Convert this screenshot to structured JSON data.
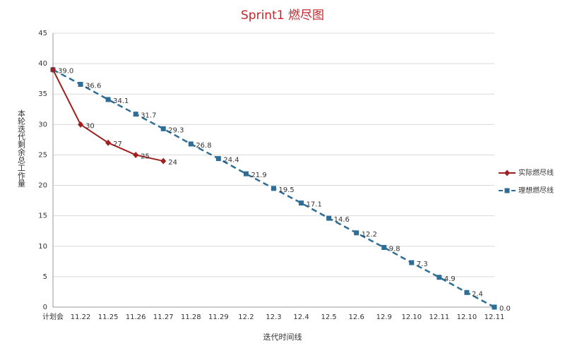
{
  "chart_data": {
    "type": "line",
    "title": "Sprint1 燃尽图",
    "x_label": "迭代时间线",
    "y_label": "本轮迭代剩余总工作量",
    "categories": [
      "计划会",
      "11.22",
      "11.25",
      "11.26",
      "11.27",
      "11.28",
      "11.29",
      "12.2",
      "12.3",
      "12.4",
      "12.5",
      "12.6",
      "12.9",
      "12.10",
      "12.11",
      "12.10",
      "12.11"
    ],
    "series": [
      {
        "name": "实际燃尽线",
        "color": "#a01f1f",
        "marker": "diamond",
        "values": [
          39,
          30,
          27,
          25,
          24,
          null,
          null,
          null,
          null,
          null,
          null,
          null,
          null,
          null,
          null,
          null,
          null
        ],
        "value_labels": [
          null,
          "30",
          "27",
          "25",
          "24",
          null,
          null,
          null,
          null,
          null,
          null,
          null,
          null,
          null,
          null,
          null,
          null
        ]
      },
      {
        "name": "理想燃尽线",
        "color": "#2e6e96",
        "marker": "square",
        "dashed": true,
        "values": [
          39,
          36.6,
          34.1,
          31.7,
          29.3,
          26.8,
          24.4,
          21.9,
          19.5,
          17.1,
          14.6,
          12.2,
          9.8,
          7.3,
          4.9,
          2.4,
          0
        ],
        "value_labels": [
          "39.0",
          "36.6",
          "34.1",
          "31.7",
          "29.3",
          "26.8",
          "24.4",
          "21.9",
          "19.5",
          "17.1",
          "14.6",
          "12.2",
          "9.8",
          "7.3",
          "4.9",
          "2.4",
          "0.0"
        ]
      }
    ],
    "ylim": [
      0,
      45
    ],
    "yticks": [
      0,
      5,
      10,
      15,
      20,
      25,
      30,
      35,
      40,
      45
    ],
    "grid": true,
    "legend": "right"
  }
}
